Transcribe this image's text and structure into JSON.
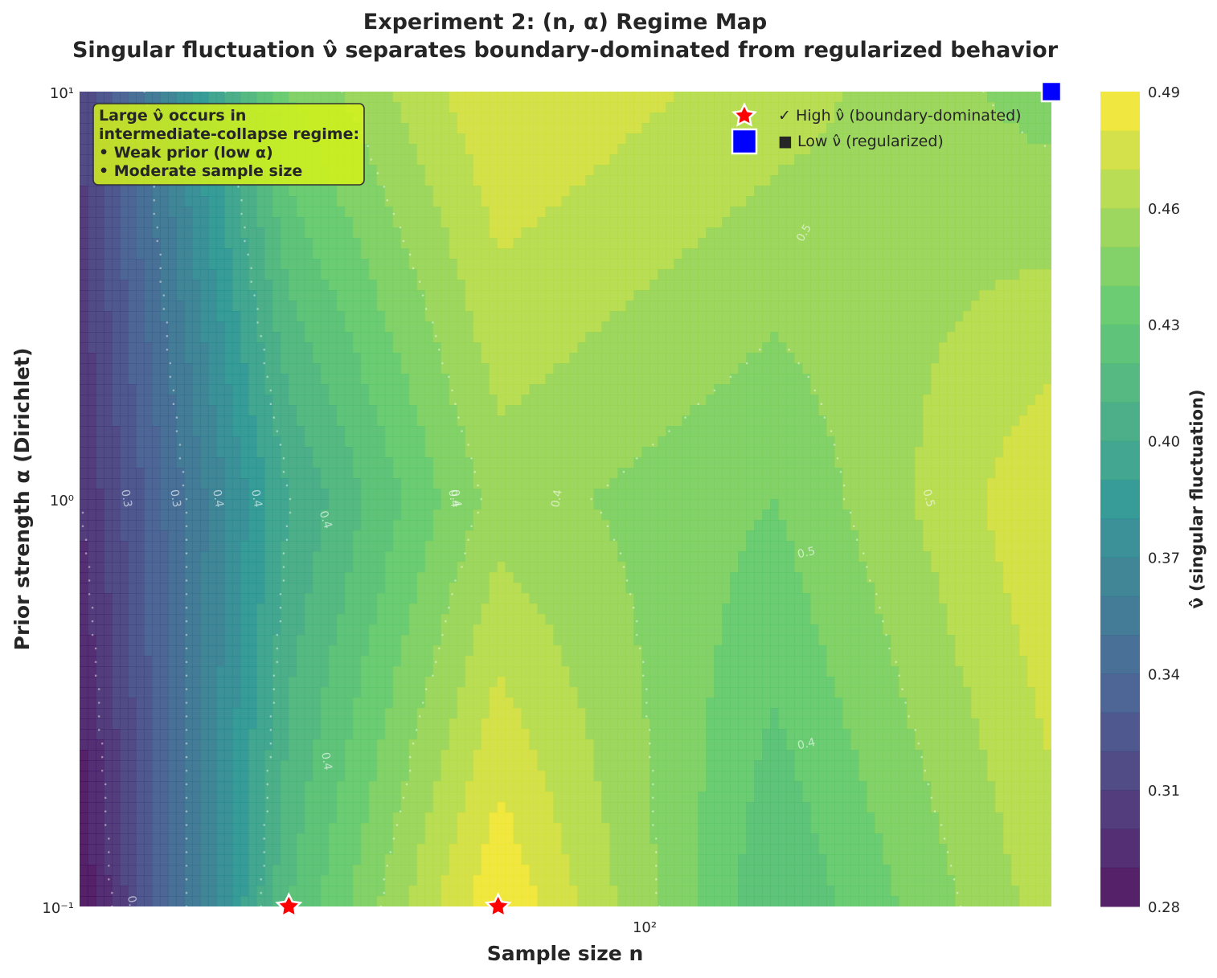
{
  "title_line1": "Experiment 2: (n, α) Regime Map",
  "title_line2": "Singular fluctuation ν̂ separates boundary-dominated from regularized behavior",
  "chart_data": {
    "type": "heatmap",
    "subtype": "filled-contour",
    "xlabel": "Sample size n",
    "ylabel": "Prior strength α (Dirichlet)",
    "xscale": "log",
    "yscale": "log",
    "xlim": [
      20,
      500
    ],
    "ylim": [
      0.1,
      10
    ],
    "x_ticks": [
      "10²"
    ],
    "y_ticks": [
      "10⁻¹",
      "10⁰",
      "10¹"
    ],
    "x": [
      20,
      40,
      80,
      200,
      500
    ],
    "y": [
      0.1,
      1,
      10
    ],
    "z": [
      [
        0.28,
        0.42,
        0.49,
        0.42,
        0.465
      ],
      [
        0.3,
        0.4,
        0.455,
        0.44,
        0.48
      ],
      [
        0.31,
        0.44,
        0.48,
        0.465,
        0.445
      ]
    ],
    "colorbar": {
      "label": "ν̂ (singular fluctuation)",
      "min": 0.28,
      "max": 0.49,
      "levels": [
        0.28,
        0.29,
        0.3,
        0.31,
        0.32,
        0.33,
        0.34,
        0.35,
        0.36,
        0.37,
        0.38,
        0.39,
        0.4,
        0.41,
        0.42,
        0.43,
        0.44,
        0.45,
        0.46,
        0.47,
        0.48,
        0.49
      ],
      "tick_labels": [
        "0.28",
        "0.31",
        "0.34",
        "0.37",
        "0.40",
        "0.43",
        "0.46",
        "0.49"
      ]
    },
    "contour_labels": [
      "0.3",
      "0.3",
      "0.4",
      "0.4",
      "0.4",
      "0.4",
      "0.4",
      "0.5",
      "0.5",
      "0.5",
      "0.4",
      "0.4",
      "0.4",
      "0."
    ],
    "markers": {
      "high": {
        "label": "✓ High ν̂ (boundary-dominated)",
        "points": [
          {
            "x": 40,
            "y": 0.1
          },
          {
            "x": 80,
            "y": 0.1
          }
        ]
      },
      "low": {
        "label": "■ Low ν̂ (regularized)",
        "points": [
          {
            "x": 500,
            "y": 10
          }
        ]
      }
    },
    "legend_position": "upper right",
    "annotation": [
      "Large ν̂ occurs in",
      "intermediate-collapse regime:",
      "• Weak prior (low α)",
      "• Moderate sample size"
    ],
    "colormap": [
      "#440154",
      "#3b528b",
      "#21918c",
      "#5ec962",
      "#fde725"
    ],
    "alpha": 0.9
  }
}
